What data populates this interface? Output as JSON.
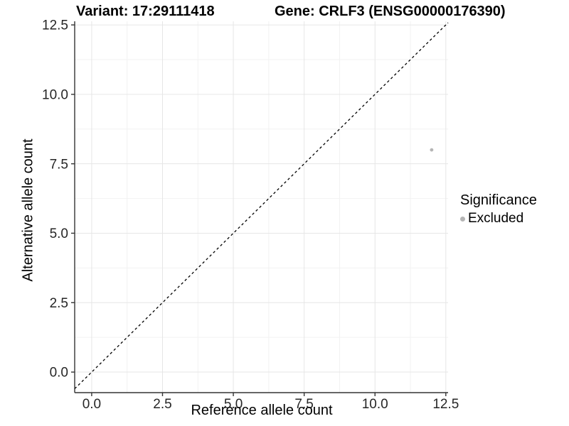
{
  "chart_data": {
    "type": "scatter",
    "titles": {
      "left": "Variant: 17:29111418",
      "right": "Gene: CRLF3 (ENSG00000176390)"
    },
    "xlabel": "Reference allele count",
    "ylabel": "Alternative allele count",
    "x_ticks": {
      "values": [
        0,
        2.5,
        5,
        7.5,
        10,
        12.5
      ],
      "labels": [
        "0.0",
        "2.5",
        "5.0",
        "7.5",
        "10.0",
        "12.5"
      ]
    },
    "y_ticks": {
      "values": [
        0,
        2.5,
        5,
        7.5,
        10,
        12.5
      ],
      "labels": [
        "0.0",
        "2.5",
        "5.0",
        "7.5",
        "10.0",
        "12.5"
      ]
    },
    "x_minor": [
      1.25,
      3.75,
      6.25,
      8.75,
      11.25
    ],
    "y_minor": [
      1.25,
      3.75,
      6.25,
      8.75,
      11.25
    ],
    "xlim": [
      -0.6,
      12.58
    ],
    "ylim": [
      -0.74,
      12.63
    ],
    "grid": true,
    "identity_line": {
      "show": true,
      "style": "dashed",
      "color": "#000000"
    },
    "series": [
      {
        "name": "Excluded",
        "color": "#b5b5b5",
        "points": [
          {
            "x": 12,
            "y": 8
          }
        ]
      }
    ],
    "legend": {
      "title": "Significance",
      "position": "right",
      "items": [
        {
          "label": "Excluded",
          "color": "#b5b5b5",
          "marker": "circle"
        }
      ]
    },
    "colors": {
      "axis_line": "#333333",
      "tick_mark": "#333333",
      "tick_label": "#262626",
      "grid_major": "#e6e6e6",
      "grid_minor": "#f2f2f2",
      "background": "#ffffff"
    }
  }
}
